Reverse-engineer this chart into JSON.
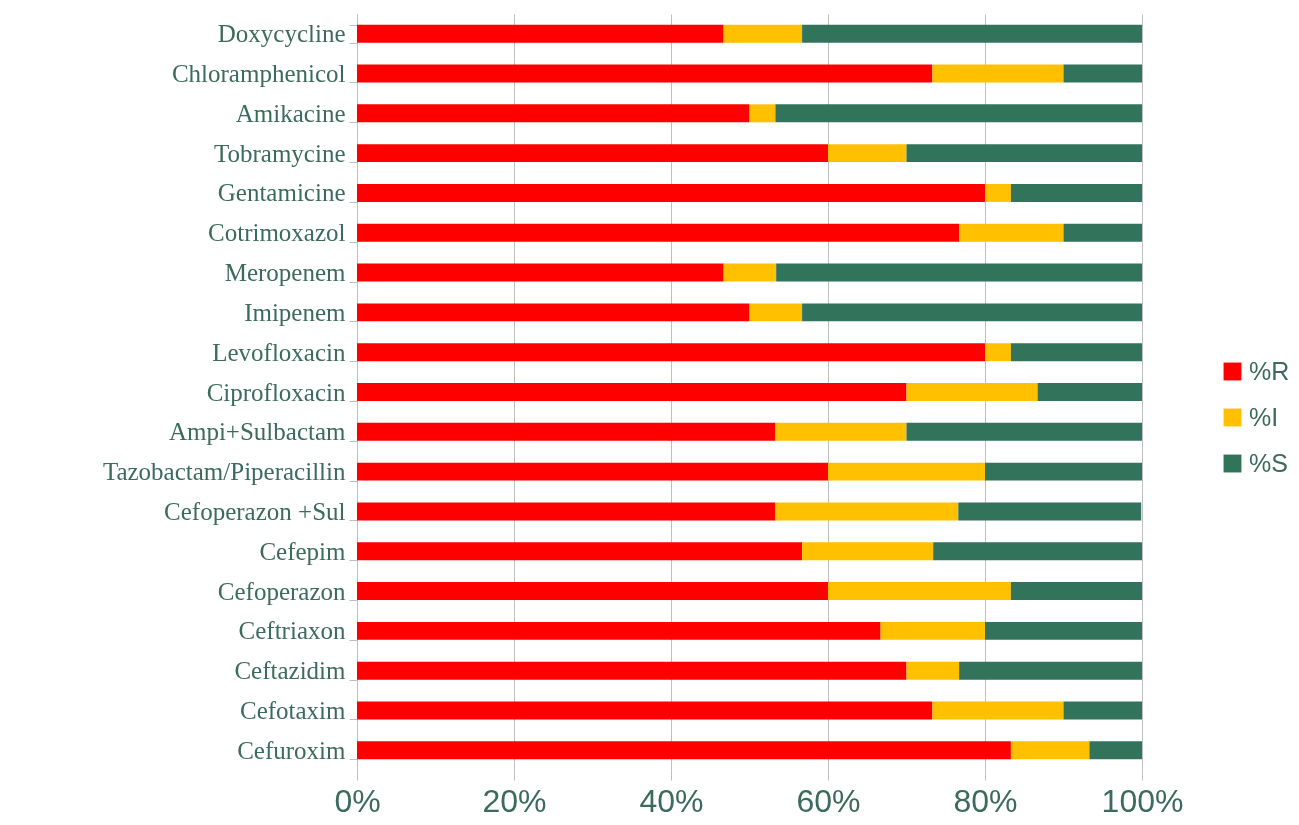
{
  "chart_data": {
    "type": "bar",
    "orientation": "horizontal",
    "stacked": true,
    "legend": "right",
    "grid": "x",
    "categories": [
      "Doxycycline",
      "Chloramphenicol",
      "Amikacine",
      "Tobramycine",
      "Gentamicine",
      "Cotrimoxazol",
      "Meropenem",
      "Imipenem",
      "Levofloxacin",
      "Ciprofloxacin",
      "Ampi+Sulbactam",
      "Tazobactam/Piperacillin",
      "Cefoperazon +Sul",
      "Cefepim",
      "Cefoperazon",
      "Ceftriaxon",
      "Ceftazidim",
      "Cefotaxim",
      "Cefuroxim"
    ],
    "series": [
      {
        "name": "%R",
        "color": "#ff0000",
        "values": [
          46.7,
          73.3,
          50,
          60,
          80,
          76.7,
          46.7,
          50,
          80,
          70,
          53.3,
          60,
          53.3,
          56.7,
          60,
          66.7,
          70,
          73.3,
          83.3
        ]
      },
      {
        "name": "%I",
        "color": "#ffc000",
        "values": [
          10,
          16.7,
          3.3,
          10,
          3.3,
          13.3,
          6.7,
          6.7,
          3.3,
          16.7,
          16.7,
          20,
          23.3,
          16.7,
          23.3,
          13.3,
          6.7,
          16.7,
          10
        ]
      },
      {
        "name": "%S",
        "color": "#31735b",
        "values": [
          43.3,
          10,
          46.7,
          30,
          16.7,
          10,
          46.6,
          43.3,
          16.7,
          13.3,
          30,
          20,
          23.3,
          26.6,
          16.7,
          20,
          23.3,
          10,
          6.7
        ]
      }
    ],
    "xlim": [
      0,
      100
    ],
    "xticks": [
      {
        "value": 0,
        "label": "0%"
      },
      {
        "value": 20,
        "label": "20%"
      },
      {
        "value": 40,
        "label": "40%"
      },
      {
        "value": 60,
        "label": "60%"
      },
      {
        "value": 80,
        "label": "80%"
      },
      {
        "value": 100,
        "label": "100%"
      }
    ]
  }
}
